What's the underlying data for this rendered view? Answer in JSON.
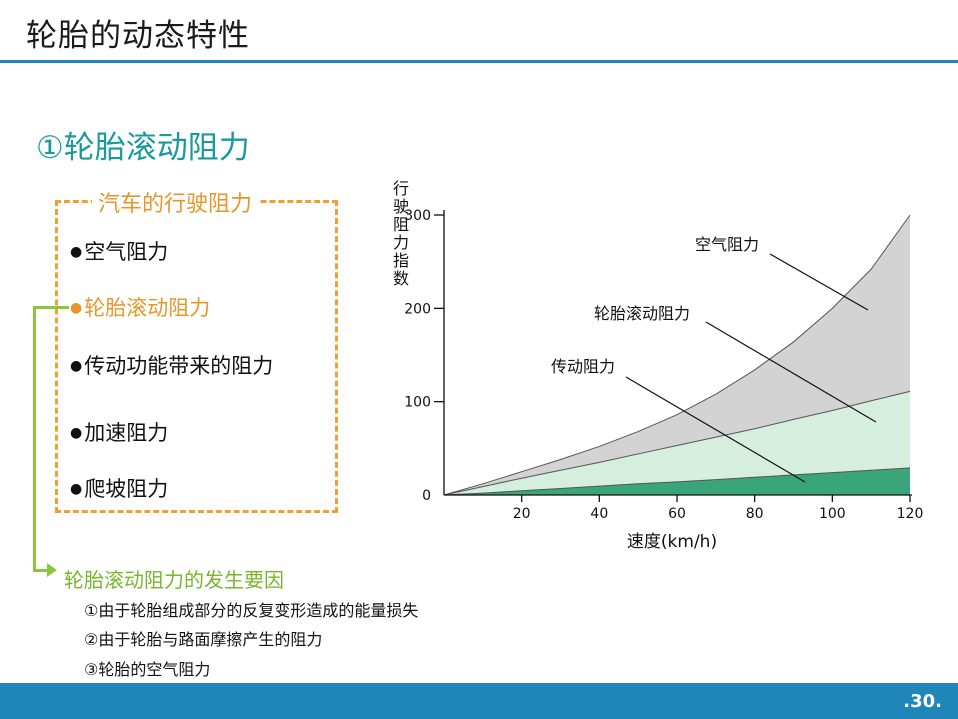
{
  "slide": {
    "title": "轮胎的动态特性",
    "section_heading": "①轮胎滚动阻力",
    "page_number": ".30."
  },
  "resistance_box": {
    "title": "汽车的行驶阻力",
    "bullet": "●",
    "items": [
      "空气阻力",
      "轮胎滚动阻力",
      "传动功能带来的阻力",
      "加速阻力",
      "爬坡阻力"
    ]
  },
  "causes": {
    "heading": "轮胎滚动阻力的发生要因",
    "items": [
      "①由于轮胎组成部分的反复变形造成的能量损失",
      "②由于轮胎与路面摩擦产生的阻力",
      "③轮胎的空气阻力"
    ]
  },
  "colors": {
    "accent_blue": "#1e86b8",
    "heading_teal": "#1a9a9a",
    "box_orange": "#e8962a",
    "connector_green": "#8cc63f",
    "air_fill": "#d3d3d3",
    "rolling_fill": "#d6eedd",
    "drivetrain_fill": "#3aa57a"
  },
  "chart_data": {
    "type": "area",
    "stacked": true,
    "ylabel": "行驶阻力指数",
    "xlabel": "速度(km/h)",
    "xlim": [
      0,
      120
    ],
    "ylim": [
      0,
      300
    ],
    "xticks": [
      20,
      40,
      60,
      80,
      100,
      120
    ],
    "yticks": [
      0,
      100,
      200,
      300
    ],
    "x": [
      0,
      10,
      20,
      30,
      40,
      50,
      60,
      70,
      80,
      90,
      100,
      110,
      120
    ],
    "series": [
      {
        "name": "传动阻力",
        "values": [
          0,
          2,
          4.5,
          7,
          9.5,
          12,
          14,
          16.5,
          19,
          21.5,
          24,
          26.5,
          29
        ]
      },
      {
        "name": "轮胎滚动阻力",
        "values": [
          0,
          9,
          18,
          26.5,
          35,
          44,
          53,
          62,
          71,
          81,
          90.5,
          101,
          111
        ]
      },
      {
        "name": "空气阻力",
        "values": [
          0,
          12,
          25,
          38,
          52,
          68,
          86,
          108,
          134,
          164,
          200,
          242,
          300
        ]
      }
    ],
    "grid": false,
    "legend": "annotations"
  }
}
